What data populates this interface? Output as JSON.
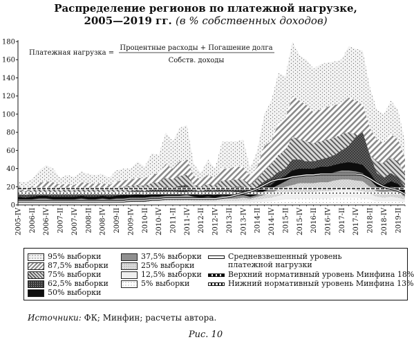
{
  "title": {
    "line1": "Распределение регионов по платежной нагрузке,",
    "line2_main": "2005—2019 гг.",
    "line2_sub": "(в % собственных доходов)"
  },
  "formula": {
    "lhs": "Платежная нагрузка =",
    "numerator": "Процентные расходы + Погашение долга",
    "denominator": "Собств. доходы"
  },
  "source": {
    "label": "Источники:",
    "text": "ФК; Минфин; расчеты автора."
  },
  "caption": "Рис. 10",
  "legend": [
    {
      "name": "95% выборки",
      "pattern": "p95"
    },
    {
      "name": "87,5% выборки",
      "pattern": "p875"
    },
    {
      "name": "75% выборки",
      "pattern": "p75"
    },
    {
      "name": "62,5% выборки",
      "pattern": "p625"
    },
    {
      "name": "50% выборки",
      "pattern": "p50"
    },
    {
      "name": "37,5% выборки",
      "pattern": "p375"
    },
    {
      "name": "25% выборки",
      "pattern": "p25"
    },
    {
      "name": "12,5% выборки",
      "pattern": "p125"
    },
    {
      "name": "5% выборки",
      "pattern": "p5"
    },
    {
      "name": "Средневзвешенный уровень платежной нагрузки",
      "line1": "Средневзвешенный уровень",
      "line2": "платежной нагрузки",
      "pattern": "line-avg"
    },
    {
      "name": "Верхний нормативный уровень Минфина 18%",
      "pattern": "line-up"
    },
    {
      "name": "Нижний нормативный уровень Минфина 13%",
      "pattern": "line-low"
    }
  ],
  "chart_data": {
    "type": "area",
    "title": "Распределение регионов по платежной нагрузке, 2005—2019 гг. (в % собственных доходов)",
    "ylim": [
      0,
      180
    ],
    "yticks": [
      0,
      20,
      40,
      60,
      80,
      100,
      120,
      140,
      160,
      180
    ],
    "grid": false,
    "tick_labels": [
      "2005-IV",
      "2006-II",
      "2006-IV",
      "2007-II",
      "2007-IV",
      "2008-II",
      "2008-IV",
      "2009-II",
      "2009-IV",
      "2010-II",
      "2010-IV",
      "2011-II",
      "2011-IV",
      "2012-II",
      "2012-IV",
      "2013-II",
      "2013-IV",
      "2014-II",
      "2014-IV",
      "2015-II",
      "2015-IV",
      "2016-II",
      "2016-IV",
      "2017-II",
      "2017-IV",
      "2018-II",
      "2018-IV",
      "2019-II"
    ],
    "x": [
      "2005-IV",
      "2006-I",
      "2006-II",
      "2006-III",
      "2006-IV",
      "2007-I",
      "2007-II",
      "2007-III",
      "2007-IV",
      "2008-I",
      "2008-II",
      "2008-III",
      "2008-IV",
      "2009-I",
      "2009-II",
      "2009-III",
      "2009-IV",
      "2010-I",
      "2010-II",
      "2010-III",
      "2010-IV",
      "2011-I",
      "2011-II",
      "2011-III",
      "2011-IV",
      "2012-I",
      "2012-II",
      "2012-III",
      "2012-IV",
      "2013-I",
      "2013-II",
      "2013-III",
      "2013-IV",
      "2014-I",
      "2014-II",
      "2014-III",
      "2014-IV",
      "2015-I",
      "2015-II",
      "2015-III",
      "2015-IV",
      "2016-I",
      "2016-II",
      "2016-III",
      "2016-IV",
      "2017-I",
      "2017-II",
      "2017-III",
      "2017-IV",
      "2018-I",
      "2018-II",
      "2018-III",
      "2018-IV",
      "2019-I",
      "2019-II",
      "2019-III"
    ],
    "series": [
      {
        "name": "95% выборки",
        "values": [
          26,
          25,
          28,
          38,
          44,
          40,
          30,
          33,
          31,
          37,
          34,
          33,
          34,
          30,
          38,
          40,
          40,
          48,
          42,
          57,
          55,
          80,
          70,
          85,
          88,
          45,
          35,
          50,
          40,
          70,
          70,
          70,
          72,
          40,
          60,
          100,
          115,
          145,
          142,
          180,
          165,
          160,
          150,
          155,
          157,
          158,
          160,
          175,
          172,
          170,
          130,
          105,
          100,
          115,
          105,
          70
        ]
      },
      {
        "name": "87,5% выборки",
        "values": [
          20,
          19,
          20,
          24,
          26,
          25,
          22,
          23,
          22,
          25,
          24,
          23,
          24,
          22,
          26,
          27,
          28,
          30,
          29,
          33,
          35,
          45,
          40,
          48,
          50,
          32,
          28,
          33,
          30,
          40,
          40,
          42,
          42,
          32,
          42,
          65,
          70,
          90,
          95,
          120,
          115,
          110,
          102,
          105,
          108,
          110,
          112,
          118,
          115,
          110,
          85,
          72,
          68,
          78,
          72,
          52
        ]
      },
      {
        "name": "75% выборки",
        "values": [
          16,
          15,
          16,
          18,
          19,
          18,
          16,
          17,
          16,
          18,
          17,
          17,
          18,
          16,
          19,
          20,
          21,
          22,
          21,
          24,
          25,
          30,
          28,
          32,
          33,
          22,
          20,
          23,
          21,
          27,
          27,
          28,
          28,
          22,
          28,
          38,
          45,
          55,
          60,
          75,
          72,
          70,
          68,
          70,
          72,
          74,
          78,
          80,
          78,
          72,
          55,
          48,
          46,
          52,
          48,
          34
        ]
      },
      {
        "name": "62,5% выборки",
        "values": [
          12,
          11,
          12,
          13,
          14,
          13,
          12,
          13,
          12,
          13,
          13,
          13,
          13,
          12,
          14,
          14,
          15,
          16,
          15,
          17,
          18,
          20,
          19,
          21,
          22,
          16,
          15,
          17,
          16,
          19,
          19,
          20,
          20,
          16,
          20,
          26,
          30,
          36,
          40,
          50,
          50,
          48,
          48,
          50,
          52,
          55,
          60,
          65,
          75,
          80,
          55,
          35,
          30,
          35,
          30,
          20
        ]
      },
      {
        "name": "50% выборки",
        "values": [
          9,
          8,
          9,
          10,
          10,
          9,
          9,
          9,
          9,
          10,
          9,
          9,
          10,
          9,
          10,
          11,
          11,
          12,
          11,
          12,
          13,
          14,
          14,
          15,
          15,
          12,
          11,
          12,
          11,
          14,
          14,
          15,
          15,
          12,
          15,
          20,
          22,
          28,
          32,
          38,
          40,
          40,
          40,
          42,
          42,
          44,
          46,
          47,
          46,
          44,
          35,
          25,
          22,
          26,
          23,
          15
        ]
      },
      {
        "name": "37,5% выборки",
        "values": [
          6,
          6,
          6,
          7,
          7,
          6,
          6,
          6,
          6,
          7,
          6,
          6,
          7,
          6,
          7,
          7,
          8,
          8,
          8,
          9,
          9,
          10,
          10,
          10,
          11,
          9,
          8,
          9,
          8,
          10,
          10,
          10,
          11,
          9,
          11,
          15,
          18,
          22,
          26,
          30,
          32,
          32,
          32,
          34,
          34,
          36,
          38,
          38,
          37,
          35,
          28,
          20,
          18,
          20,
          18,
          12
        ]
      },
      {
        "name": "25% выборки",
        "values": [
          4,
          4,
          4,
          5,
          5,
          4,
          4,
          4,
          4,
          5,
          4,
          4,
          5,
          4,
          5,
          5,
          5,
          6,
          5,
          6,
          6,
          7,
          7,
          7,
          8,
          6,
          6,
          6,
          6,
          7,
          7,
          7,
          8,
          7,
          9,
          11,
          13,
          17,
          20,
          22,
          24,
          24,
          24,
          25,
          25,
          27,
          28,
          28,
          27,
          26,
          20,
          15,
          14,
          15,
          14,
          9
        ]
      },
      {
        "name": "12,5% выборки",
        "values": [
          2.5,
          2.5,
          2.5,
          3,
          3,
          2.5,
          2.5,
          2.5,
          2.5,
          3,
          2.5,
          2.5,
          3,
          2.5,
          3,
          3,
          3,
          3.5,
          3,
          4,
          4,
          4.5,
          4.5,
          4.5,
          5,
          4,
          4,
          4,
          4,
          4.5,
          4.5,
          4.5,
          5,
          5,
          6,
          7,
          8,
          10,
          12,
          13,
          14,
          14,
          14,
          15,
          15,
          16,
          17,
          17,
          16,
          15,
          12,
          9,
          8,
          9,
          8,
          6
        ]
      },
      {
        "name": "5% выборки",
        "values": [
          1,
          1,
          1,
          1,
          1.5,
          1,
          1,
          1,
          1,
          1.5,
          1,
          1,
          1.5,
          1,
          1.5,
          1.5,
          1.5,
          1.5,
          1.5,
          2,
          2,
          2,
          2,
          2,
          2.5,
          2,
          2,
          2,
          2,
          2,
          2,
          2,
          2.5,
          2.5,
          3,
          3.5,
          4,
          5,
          6,
          6,
          7,
          7,
          7,
          7,
          7,
          8,
          8,
          8,
          8,
          7,
          6,
          4,
          4,
          4,
          4,
          3
        ]
      },
      {
        "name": "Средневзвешенный уровень платежной нагрузки",
        "values": [
          4,
          4,
          4,
          4,
          4,
          4,
          4,
          4,
          4,
          4,
          4,
          4,
          4,
          4,
          4,
          4,
          5,
          5,
          5,
          6,
          6,
          7,
          7,
          7,
          7,
          7,
          7,
          7,
          7,
          8,
          9,
          11,
          13,
          15,
          18,
          22,
          26,
          28,
          29,
          31,
          32,
          33,
          33,
          34,
          34,
          34,
          34,
          34,
          34,
          33,
          29,
          24,
          20,
          18,
          16,
          12
        ]
      },
      {
        "name": "Верхний нормативный уровень Минфина 18%",
        "values": [
          18,
          18,
          18,
          18,
          18,
          18,
          18,
          18,
          18,
          18,
          18,
          18,
          18,
          18,
          18,
          18,
          18,
          18,
          18,
          18,
          18,
          18,
          18,
          18,
          18,
          18,
          18,
          18,
          18,
          18,
          18,
          18,
          18,
          18,
          18,
          18,
          18,
          18,
          18,
          18,
          18,
          18,
          18,
          18,
          18,
          18,
          18,
          18,
          18,
          18,
          18,
          18,
          18,
          18,
          18,
          18
        ]
      },
      {
        "name": "Нижний нормативный уровень Минфина 13%",
        "values": [
          13,
          13,
          13,
          13,
          13,
          13,
          13,
          13,
          13,
          13,
          13,
          13,
          13,
          13,
          13,
          13,
          13,
          13,
          13,
          13,
          13,
          13,
          13,
          13,
          13,
          13,
          13,
          13,
          13,
          13,
          13,
          13,
          13,
          13,
          13,
          13,
          13,
          13,
          13,
          13,
          13,
          13,
          13,
          13,
          13,
          13,
          13,
          13,
          13,
          13,
          13,
          13,
          13,
          13,
          13,
          13
        ]
      }
    ]
  }
}
